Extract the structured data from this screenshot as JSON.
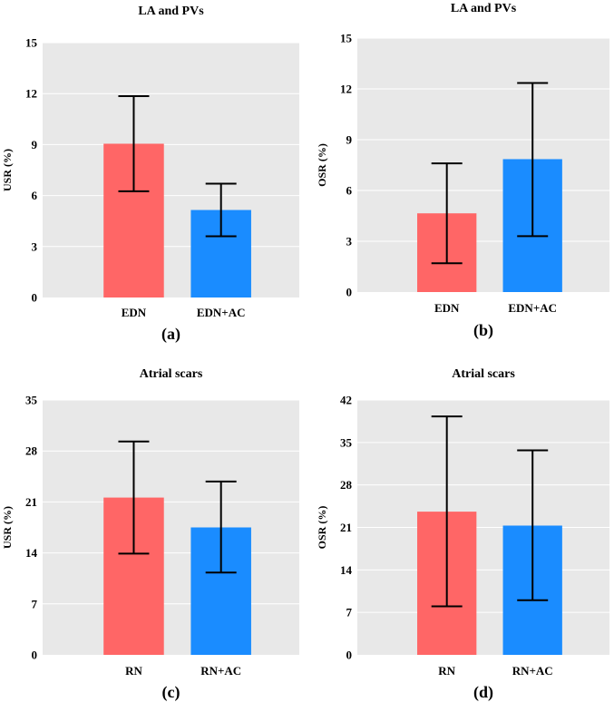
{
  "colors": {
    "plot_bg": "#e8e8e8",
    "grid": "#ffffff",
    "series_a": "#ff6666",
    "series_b": "#1a8cff",
    "error_bar": "#000000"
  },
  "chart_data": [
    {
      "type": "bar",
      "title": "LA  and PVs",
      "ylabel": "USR (%)",
      "panel_label": "(a)",
      "categories": [
        "EDN",
        "EDN+AC"
      ],
      "values": [
        9.05,
        5.15
      ],
      "error_low": [
        6.25,
        3.6
      ],
      "error_high": [
        11.85,
        6.7
      ],
      "ylim": [
        0,
        15
      ],
      "yticks": [
        0,
        3,
        6,
        9,
        12,
        15
      ],
      "bar_colors": [
        "#ff6666",
        "#1a8cff"
      ],
      "grid": true
    },
    {
      "type": "bar",
      "title": "LA  and PVs",
      "ylabel": "OSR (%)",
      "panel_label": "(b)",
      "categories": [
        "EDN",
        "EDN+AC"
      ],
      "values": [
        4.65,
        7.85
      ],
      "error_low": [
        1.7,
        3.3
      ],
      "error_high": [
        7.6,
        12.35
      ],
      "ylim": [
        0,
        15
      ],
      "yticks": [
        0,
        3,
        6,
        9,
        12,
        15
      ],
      "bar_colors": [
        "#ff6666",
        "#1a8cff"
      ],
      "grid": true
    },
    {
      "type": "bar",
      "title": "Atrial scars",
      "ylabel": "USR (%)",
      "panel_label": "(c)",
      "categories": [
        "RN",
        "RN+AC"
      ],
      "values": [
        21.6,
        17.5
      ],
      "error_low": [
        13.9,
        11.3
      ],
      "error_high": [
        29.3,
        23.8
      ],
      "ylim": [
        0,
        35
      ],
      "yticks": [
        0,
        7,
        14,
        21,
        28,
        35
      ],
      "bar_colors": [
        "#ff6666",
        "#1a8cff"
      ],
      "grid": true
    },
    {
      "type": "bar",
      "title": "Atrial scars",
      "ylabel": "OSR (%)",
      "panel_label": "(d)",
      "categories": [
        "RN",
        "RN+AC"
      ],
      "values": [
        23.6,
        21.3
      ],
      "error_low": [
        8.0,
        9.0
      ],
      "error_high": [
        39.3,
        33.7
      ],
      "ylim": [
        0,
        42
      ],
      "yticks": [
        0,
        7,
        14,
        21,
        28,
        35,
        42
      ],
      "bar_colors": [
        "#ff6666",
        "#1a8cff"
      ],
      "grid": true
    }
  ]
}
